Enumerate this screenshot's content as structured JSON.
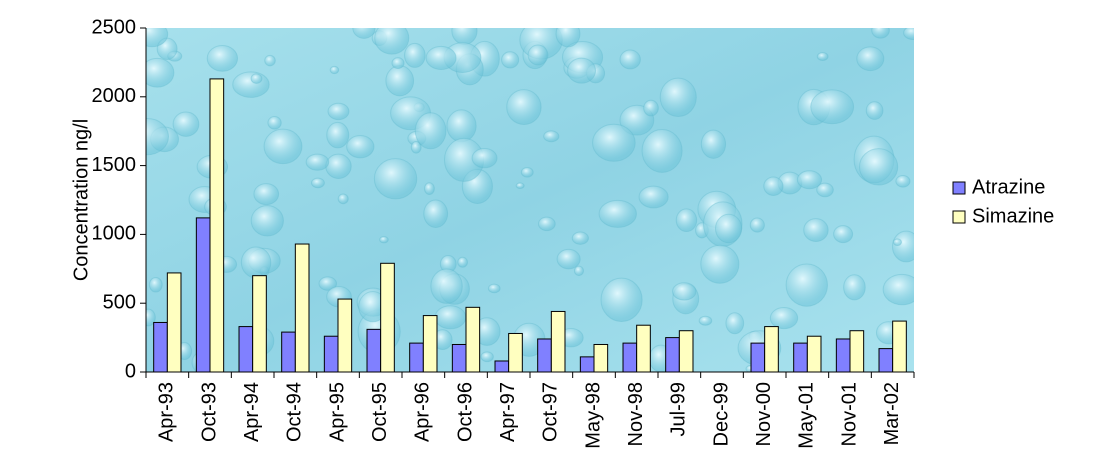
{
  "chart_data": {
    "type": "bar",
    "y_label": "Concentration ng/l",
    "categories": [
      "Apr-93",
      "Oct-93",
      "Apr-94",
      "Oct-94",
      "Apr-95",
      "Oct-95",
      "Apr-96",
      "Oct-96",
      "Apr-97",
      "Oct-97",
      "May-98",
      "Nov-98",
      "Jul-99",
      "Dec-99",
      "Nov-00",
      "May-01",
      "Nov-01",
      "Mar-02"
    ],
    "series": [
      {
        "name": "Atrazine",
        "color": "#8080ff",
        "values": [
          360,
          1120,
          330,
          290,
          260,
          310,
          210,
          200,
          80,
          240,
          110,
          210,
          250,
          null,
          210,
          210,
          240,
          170
        ]
      },
      {
        "name": "Simazine",
        "color": "#ffffc0",
        "values": [
          720,
          2130,
          700,
          930,
          530,
          790,
          410,
          470,
          280,
          440,
          200,
          340,
          300,
          null,
          330,
          260,
          300,
          370
        ]
      }
    ],
    "ylim": [
      0,
      2500
    ],
    "yticks": [
      0,
      500,
      1000,
      1500,
      2000,
      2500
    ],
    "legend": "right"
  }
}
